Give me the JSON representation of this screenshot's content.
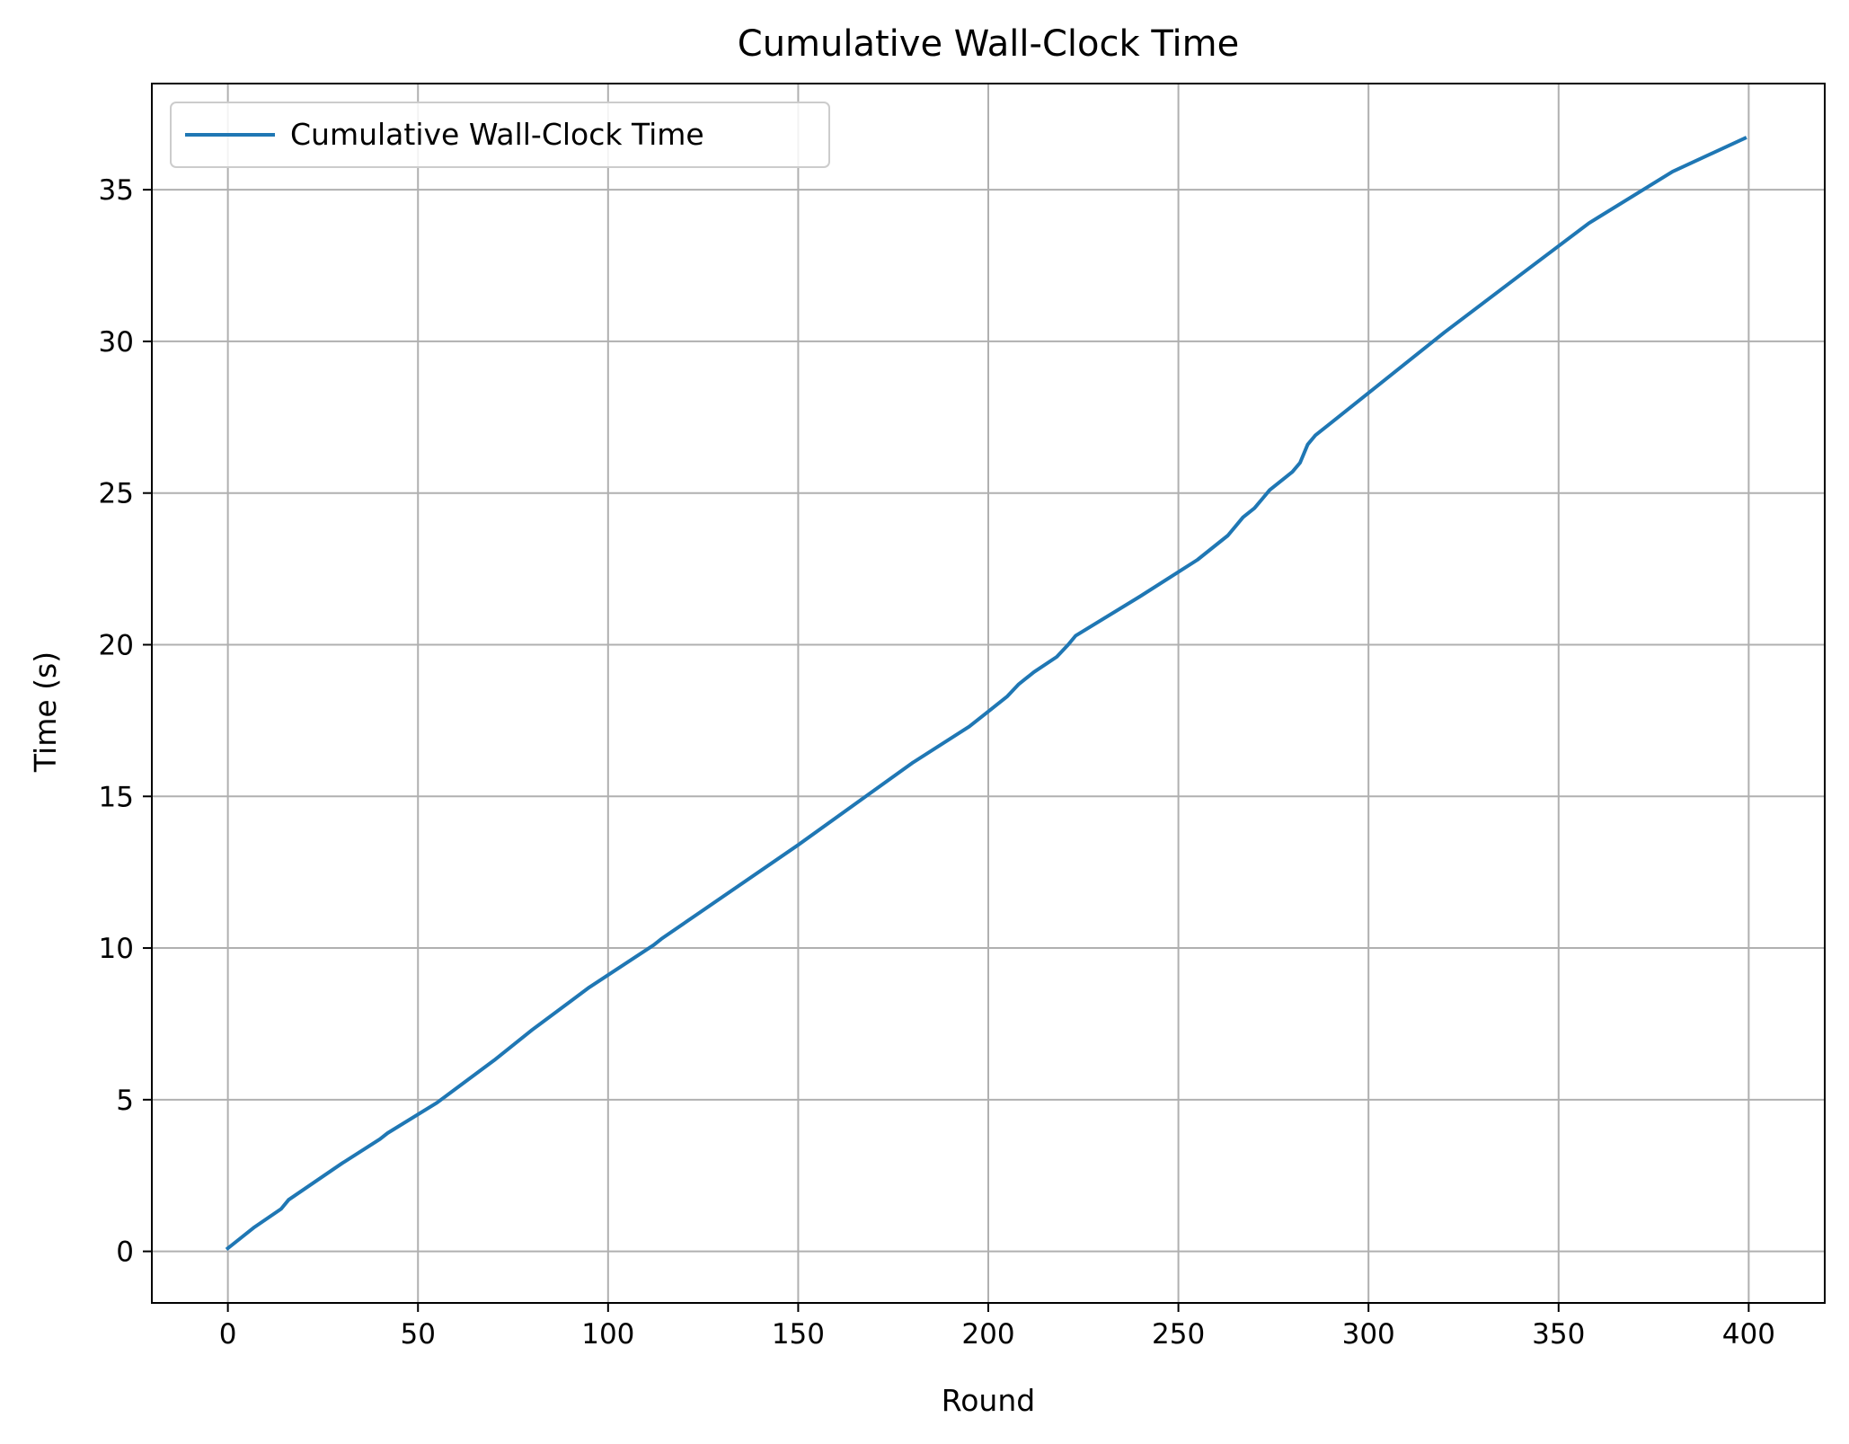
{
  "chart_data": {
    "type": "line",
    "title": "Cumulative Wall-Clock Time",
    "xlabel": "Round",
    "ylabel": "Time (s)",
    "xlim": [
      -20,
      420
    ],
    "ylim": [
      -1.7,
      38.5
    ],
    "xticks": [
      0,
      50,
      100,
      150,
      200,
      250,
      300,
      350,
      400
    ],
    "yticks": [
      0,
      5,
      10,
      15,
      20,
      25,
      30,
      35
    ],
    "xtick_labels": [
      "0",
      "50",
      "100",
      "150",
      "200",
      "250",
      "300",
      "350",
      "400"
    ],
    "ytick_labels": [
      "0",
      "5",
      "10",
      "15",
      "20",
      "25",
      "30",
      "35"
    ],
    "grid": true,
    "legend_position": "upper-left",
    "series": [
      {
        "name": "Cumulative Wall-Clock Time",
        "color": "#1f77b4",
        "x": [
          0,
          7,
          14,
          16,
          30,
          40,
          42,
          55,
          70,
          80,
          95,
          112,
          114,
          150,
          180,
          195,
          200,
          205,
          208,
          212,
          218,
          221,
          223,
          240,
          255,
          263,
          265,
          267,
          270,
          272,
          274,
          278,
          280,
          282,
          284,
          286,
          290,
          300,
          320,
          340,
          358,
          380,
          399
        ],
        "y": [
          0.1,
          0.8,
          1.4,
          1.7,
          2.9,
          3.7,
          3.9,
          4.9,
          6.3,
          7.3,
          8.7,
          10.1,
          10.3,
          13.4,
          16.1,
          17.3,
          17.8,
          18.3,
          18.7,
          19.1,
          19.6,
          20.0,
          20.3,
          21.6,
          22.8,
          23.6,
          23.9,
          24.2,
          24.5,
          24.8,
          25.1,
          25.5,
          25.7,
          26.0,
          26.6,
          26.9,
          27.3,
          28.3,
          30.3,
          32.2,
          33.9,
          35.6,
          36.7
        ]
      }
    ]
  }
}
